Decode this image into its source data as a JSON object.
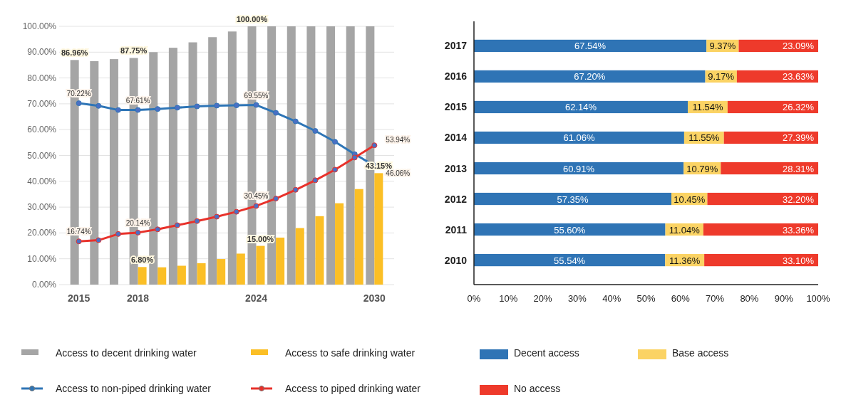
{
  "chart_data": [
    {
      "type": "bar",
      "categories": [
        "2015",
        null,
        null,
        "2018",
        null,
        null,
        null,
        null,
        null,
        "2024",
        null,
        null,
        null,
        null,
        null,
        "2030"
      ],
      "ylim": [
        0,
        100
      ],
      "yticks": [
        {
          "value": 0,
          "label": "0.00%"
        },
        {
          "value": 10,
          "label": "10.00%"
        },
        {
          "value": 20,
          "label": "20.00%"
        },
        {
          "value": 30,
          "label": "30.00%"
        },
        {
          "value": 40,
          "label": "40.00%"
        },
        {
          "value": 50,
          "label": "50.00%"
        },
        {
          "value": 60,
          "label": "60.00%"
        },
        {
          "value": 70,
          "label": "70.00%"
        },
        {
          "value": 80,
          "label": "80.00%"
        },
        {
          "value": 90,
          "label": "90.00%"
        },
        {
          "value": 100,
          "label": "100.00%"
        }
      ],
      "grid": "y",
      "legend": "bottom",
      "marker": "circle",
      "series": [
        {
          "name": "Access to decent drinking water",
          "type": "bar",
          "color": "#a5a5a5",
          "values": [
            86.96,
            86.5,
            87.3,
            87.75,
            90,
            91.7,
            93.8,
            95.8,
            98,
            100,
            100,
            100,
            100,
            100,
            100,
            100
          ],
          "value_labels": [
            "86.96%",
            null,
            null,
            "87.75%",
            null,
            null,
            null,
            null,
            null,
            "100.00%",
            null,
            null,
            null,
            null,
            null,
            null
          ]
        },
        {
          "name": "Access to safe drinking water",
          "type": "bar",
          "color": "#fbbf26",
          "values": [
            null,
            null,
            null,
            6.8,
            6.7,
            7.3,
            8.3,
            9.9,
            12,
            15,
            18.2,
            21.9,
            26.5,
            31.5,
            37,
            43.15
          ],
          "value_labels": [
            null,
            null,
            null,
            "6.80%",
            null,
            null,
            null,
            null,
            null,
            "15.00%",
            null,
            null,
            null,
            null,
            null,
            "43.15%"
          ]
        },
        {
          "name": "Access to non-piped drinking water",
          "type": "line",
          "color": "#2e75b6",
          "values": [
            70.22,
            69.2,
            67.6,
            67.61,
            68,
            68.5,
            69,
            69.3,
            69.4,
            69.55,
            66.5,
            63.2,
            59.5,
            55.3,
            50.5,
            46.06
          ],
          "value_labels": [
            "70.22%",
            null,
            null,
            "67.61%",
            null,
            null,
            null,
            null,
            null,
            "69.55%",
            null,
            null,
            null,
            null,
            null,
            "46.06%"
          ]
        },
        {
          "name": "Access to piped drinking water",
          "type": "line",
          "color": "#e8312a",
          "values": [
            16.74,
            17.2,
            19.6,
            20.14,
            21.4,
            23,
            24.6,
            26.3,
            28.2,
            30.45,
            33.3,
            36.7,
            40.4,
            44.5,
            49.2,
            53.94
          ],
          "value_labels": [
            "16.74%",
            null,
            null,
            "20.14%",
            null,
            null,
            null,
            null,
            null,
            "30.45%",
            null,
            null,
            null,
            null,
            null,
            "53.94%"
          ]
        }
      ]
    },
    {
      "type": "bar",
      "orientation": "horizontal",
      "stacked": true,
      "legend": "bottom",
      "categories": [
        "2017",
        "2016",
        "2015",
        "2014",
        "2013",
        "2012",
        "2011",
        "2010"
      ],
      "xlim": [
        0,
        100
      ],
      "xticks": [
        {
          "value": 0,
          "label": "0%"
        },
        {
          "value": 10,
          "label": "10%"
        },
        {
          "value": 20,
          "label": "20%"
        },
        {
          "value": 30,
          "label": "30%"
        },
        {
          "value": 40,
          "label": "40%"
        },
        {
          "value": 50,
          "label": "50%"
        },
        {
          "value": 60,
          "label": "60%"
        },
        {
          "value": 70,
          "label": "70%"
        },
        {
          "value": 80,
          "label": "80%"
        },
        {
          "value": 90,
          "label": "90%"
        },
        {
          "value": 100,
          "label": "100%"
        }
      ],
      "series": [
        {
          "name": "Decent access",
          "color": "#2f74b5",
          "values": [
            67.54,
            67.2,
            62.14,
            61.06,
            60.91,
            57.35,
            55.6,
            55.54
          ],
          "value_labels": [
            "67.54%",
            "67.20%",
            "62.14%",
            "61.06%",
            "60.91%",
            "57.35%",
            "55.60%",
            "55.54%"
          ]
        },
        {
          "name": "Base access",
          "color": "#fbd364",
          "values": [
            9.37,
            9.17,
            11.54,
            11.55,
            10.79,
            10.45,
            11.04,
            11.36
          ],
          "value_labels": [
            "9.37%",
            "9.17%",
            "11.54%",
            "11.55%",
            "10.79%",
            "10.45%",
            "11.04%",
            "11.36%"
          ]
        },
        {
          "name": "No access",
          "color": "#ee3a2b",
          "values": [
            23.09,
            23.63,
            26.32,
            27.39,
            28.31,
            32.2,
            33.36,
            33.1
          ],
          "value_labels": [
            "23.09%",
            "23.63%",
            "26.32%",
            "27.39%",
            "28.31%",
            "32.20%",
            "33.36%",
            "33.10%"
          ]
        }
      ]
    }
  ]
}
